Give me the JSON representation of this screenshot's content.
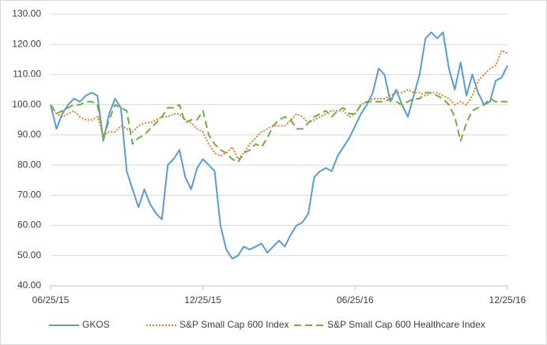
{
  "chart_data": {
    "type": "line",
    "categories": [
      "06/25/15",
      null,
      null,
      null,
      null,
      null,
      null,
      null,
      null,
      null,
      null,
      null,
      null,
      null,
      null,
      null,
      null,
      null,
      null,
      null,
      null,
      null,
      null,
      null,
      null,
      null,
      "12/25/15",
      null,
      null,
      null,
      null,
      null,
      null,
      null,
      null,
      null,
      null,
      null,
      null,
      null,
      null,
      null,
      null,
      null,
      null,
      null,
      null,
      null,
      null,
      null,
      null,
      null,
      "06/25/16",
      null,
      null,
      null,
      null,
      null,
      null,
      null,
      null,
      null,
      null,
      null,
      null,
      null,
      null,
      null,
      null,
      null,
      null,
      null,
      null,
      null,
      null,
      null,
      null,
      null,
      "12/25/16"
    ],
    "series": [
      {
        "name": "GKOS",
        "color": "#5b9bd5",
        "style": "solid",
        "values": [
          100,
          92,
          97,
          100,
          102,
          101,
          103,
          104,
          103,
          88,
          97,
          102,
          99,
          78,
          72,
          66,
          72,
          67,
          64,
          62,
          80,
          82,
          85,
          76,
          72,
          79,
          82,
          80,
          78,
          60,
          52,
          49,
          50,
          53,
          52,
          53,
          54,
          51,
          53,
          55,
          53,
          57,
          60,
          61,
          64,
          76,
          78,
          79,
          78,
          83,
          86,
          89,
          93,
          97,
          100,
          104,
          112,
          110,
          101,
          105,
          100,
          96,
          103,
          110,
          122,
          124,
          122,
          124,
          112,
          105,
          114,
          103,
          110,
          104,
          100,
          101,
          108,
          109,
          113
        ]
      },
      {
        "name": "S&P Small Cap 600 Index",
        "color": "#ed7d31",
        "style": "dotted",
        "values": [
          100,
          97,
          96,
          97,
          98,
          96,
          95,
          95,
          96,
          90,
          91,
          91,
          93,
          92,
          91,
          93,
          94,
          94,
          95,
          96,
          96,
          97,
          97,
          95,
          94,
          92,
          91,
          87,
          84,
          83,
          84,
          86,
          82,
          84,
          87,
          89,
          91,
          92,
          93,
          93,
          93,
          95,
          97,
          96,
          94,
          95,
          96,
          97,
          98,
          98,
          98,
          96,
          97,
          100,
          101,
          102,
          102,
          102,
          103,
          104,
          104,
          105,
          104,
          104,
          103,
          104,
          104,
          103,
          102,
          100,
          101,
          100,
          103,
          108,
          110,
          112,
          113,
          118,
          117
        ]
      },
      {
        "name": "S&P Small Cap 600 Healthcare Index",
        "color": "#70ad47",
        "style": "dashed",
        "values": [
          100,
          97,
          98,
          99,
          100,
          100,
          101,
          101,
          100,
          89,
          95,
          100,
          99,
          98,
          87,
          89,
          90,
          92,
          94,
          96,
          99,
          99,
          100,
          94,
          95,
          95,
          98,
          90,
          87,
          85,
          84,
          82,
          81,
          84,
          85,
          87,
          86,
          89,
          93,
          95,
          96,
          95,
          92,
          92,
          94,
          96,
          97,
          98,
          96,
          98,
          99,
          97,
          97,
          100,
          101,
          101,
          101,
          101,
          102,
          101,
          100,
          101,
          102,
          102,
          104,
          104,
          103,
          102,
          100,
          96,
          88,
          94,
          98,
          99,
          100,
          102,
          101,
          101,
          101
        ]
      }
    ],
    "ylim": [
      40,
      130
    ],
    "yticks": [
      {
        "value": 40,
        "label": "40.00"
      },
      {
        "value": 50,
        "label": "50.00"
      },
      {
        "value": 60,
        "label": "60.00"
      },
      {
        "value": 70,
        "label": "70.00"
      },
      {
        "value": 80,
        "label": "80.00"
      },
      {
        "value": 90,
        "label": "90.00"
      },
      {
        "value": 100,
        "label": "100.00"
      },
      {
        "value": 110,
        "label": "110.00"
      },
      {
        "value": 120,
        "label": "120.00"
      },
      {
        "value": 130,
        "label": "130.00"
      }
    ],
    "grid": true,
    "legend": "bottom"
  }
}
